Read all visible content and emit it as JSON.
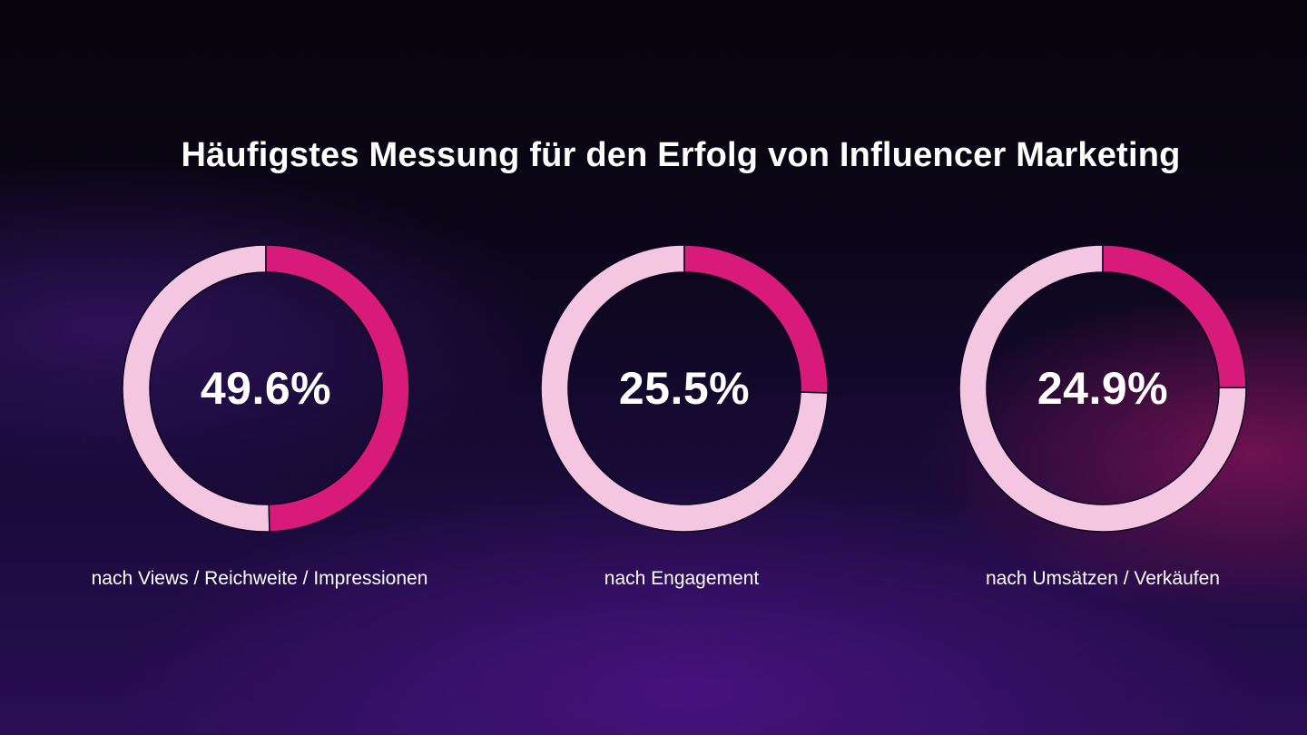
{
  "chart_data": {
    "type": "pie",
    "title": "Häufigstes Messung für den Erfolg von Influencer Marketing",
    "colors": {
      "highlight": "#d81b7b",
      "remainder": "#f5c6e2"
    },
    "items": [
      {
        "label": "nach Views / Reichweite / Impressionen",
        "value": 49.6,
        "value_text": "49.6%"
      },
      {
        "label": "nach Engagement",
        "value": 25.5,
        "value_text": "25.5%"
      },
      {
        "label": "nach Umsätzen / Verkäufen",
        "value": 24.9,
        "value_text": "24.9%"
      }
    ]
  }
}
